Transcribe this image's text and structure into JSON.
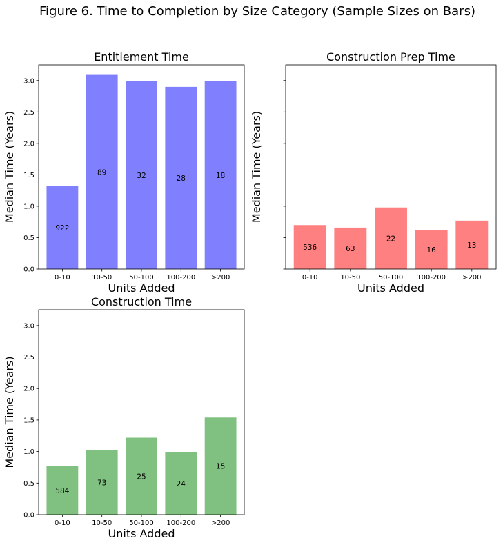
{
  "figure": {
    "title": "Figure 6. Time to Completion by Size Category (Sample Sizes on Bars)"
  },
  "chart_data": [
    {
      "type": "bar",
      "title": "Entitlement Time",
      "xlabel": "Units Added",
      "ylabel": "Median Time (Years)",
      "categories": [
        "0-10",
        "10-50",
        "50-100",
        "100-200",
        ">200"
      ],
      "values": [
        1.32,
        3.09,
        2.99,
        2.9,
        2.99
      ],
      "bar_labels": [
        "922",
        "89",
        "32",
        "28",
        "18"
      ],
      "ylim": [
        0,
        3.25
      ],
      "yticks": [
        "0.0",
        "0.5",
        "1.0",
        "1.5",
        "2.0",
        "2.5",
        "3.0"
      ],
      "color": "#8080ff",
      "ytick_labels_visible": true
    },
    {
      "type": "bar",
      "title": "Construction Prep Time",
      "xlabel": "Units Added",
      "ylabel": "Median Time (Years)",
      "categories": [
        "0-10",
        "10-50",
        "50-100",
        "100-200",
        ">200"
      ],
      "values": [
        0.7,
        0.66,
        0.98,
        0.62,
        0.77
      ],
      "bar_labels": [
        "536",
        "63",
        "22",
        "16",
        "13"
      ],
      "ylim": [
        0,
        3.25
      ],
      "yticks": [
        "0.0",
        "0.5",
        "1.0",
        "1.5",
        "2.0",
        "2.5",
        "3.0"
      ],
      "color": "#ff8080",
      "ytick_labels_visible": false
    },
    {
      "type": "bar",
      "title": "Construction Time",
      "xlabel": "Units Added",
      "ylabel": "Median Time (Years)",
      "categories": [
        "0-10",
        "10-50",
        "50-100",
        "100-200",
        ">200"
      ],
      "values": [
        0.77,
        1.02,
        1.22,
        0.99,
        1.54
      ],
      "bar_labels": [
        "584",
        "73",
        "25",
        "24",
        "15"
      ],
      "ylim": [
        0,
        3.25
      ],
      "yticks": [
        "0.0",
        "0.5",
        "1.0",
        "1.5",
        "2.0",
        "2.5",
        "3.0"
      ],
      "color": "#80c080",
      "ytick_labels_visible": true
    }
  ]
}
